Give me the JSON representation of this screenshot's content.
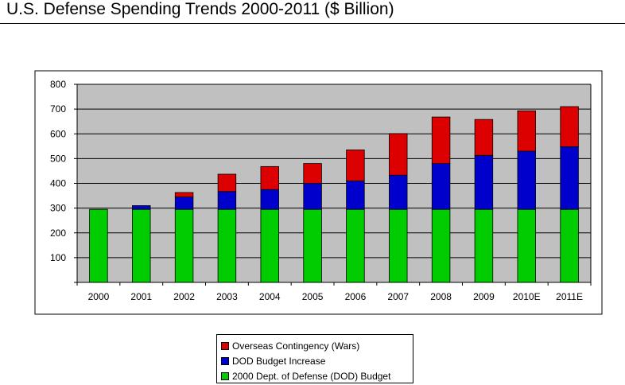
{
  "title": "U.S. Defense Spending Trends 2000-2011 ($ Billion)",
  "chart_data": {
    "type": "bar",
    "stacked": true,
    "categories": [
      "2000",
      "2001",
      "2002",
      "2003",
      "2004",
      "2005",
      "2006",
      "2007",
      "2008",
      "2009",
      "2010E",
      "2011E"
    ],
    "series": [
      {
        "name": "2000 Dept. of Defense (DOD) Budget",
        "color": "#00cc00",
        "values": [
          295,
          295,
          295,
          295,
          295,
          295,
          295,
          295,
          295,
          295,
          295,
          295
        ]
      },
      {
        "name": "DOD Budget Increase",
        "color": "#0000cc",
        "values": [
          0,
          15,
          50,
          72,
          80,
          105,
          115,
          138,
          185,
          218,
          235,
          253
        ]
      },
      {
        "name": "Overseas Contingency (Wars)",
        "color": "#dd0000",
        "values": [
          0,
          0,
          18,
          70,
          93,
          80,
          125,
          168,
          188,
          145,
          163,
          162
        ]
      }
    ],
    "ylim": [
      0,
      800
    ],
    "yticks": [
      0,
      100,
      200,
      300,
      400,
      500,
      600,
      700,
      800
    ],
    "ytick_labels": [
      "",
      "100",
      "200",
      "300",
      "400",
      "500",
      "600",
      "700",
      "800"
    ],
    "grid": true,
    "plot_background": "#c0c0c0",
    "legend_position": "bottom"
  },
  "legend": {
    "items": [
      {
        "label": "Overseas Contingency (Wars)",
        "color": "#dd0000"
      },
      {
        "label": "DOD Budget Increase",
        "color": "#0000cc"
      },
      {
        "label": "2000 Dept. of Defense (DOD) Budget",
        "color": "#00cc00"
      }
    ]
  }
}
